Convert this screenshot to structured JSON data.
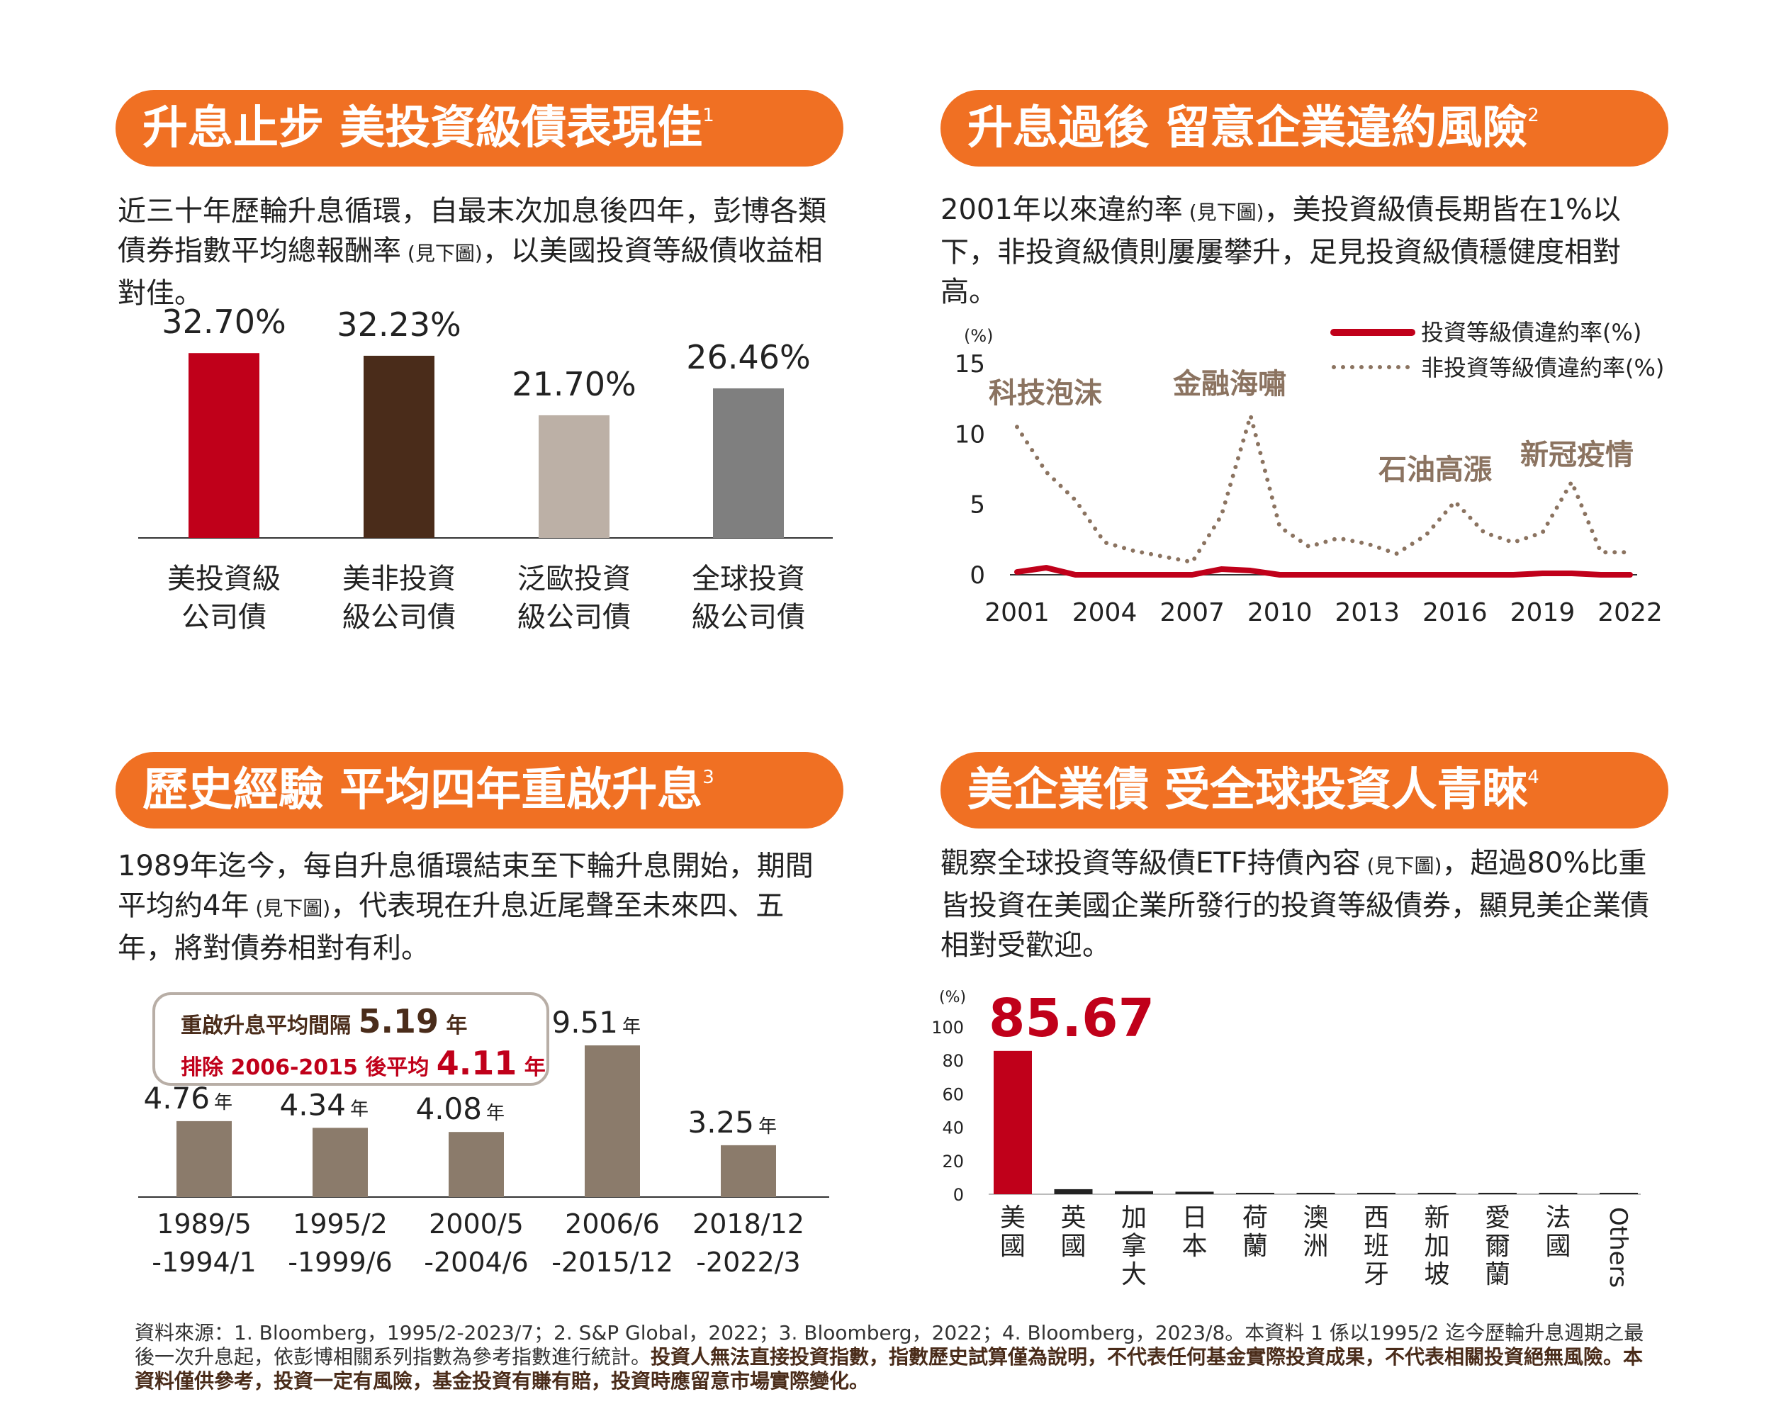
{
  "colors": {
    "orange": "#f07023",
    "red": "#c0001a",
    "dark_brown": "#4a2c1a",
    "light_taupe": "#bcb0a6",
    "gray": "#7f7f7f",
    "taupe": "#8b7b6b",
    "line_brown": "#8b7360"
  },
  "sections": {
    "s1": {
      "title": "升息止步  美投資級債表現佳",
      "note": "1",
      "body_a": "近三十年歷輪升息循環，自最末次加息後四年，彭博各類債券指數平均總報酬率",
      "body_small": " (見下圖)",
      "body_b": "，以美國投資等級債收益相對佳。"
    },
    "s2": {
      "title": "升息過後  留意企業違約風險",
      "note": "2",
      "body_a": "2001年以來違約率",
      "body_small": " (見下圖)",
      "body_b": "，美投資級債長期皆在1%以下，非投資級債則屢屢攀升，足見投資級債穩健度相對高。"
    },
    "s3": {
      "title": "歷史經驗  平均四年重啟升息",
      "note": "3",
      "body_a": "1989年迄今，每自升息循環結束至下輪升息開始，期間平均約4年",
      "body_small": " (見下圖)",
      "body_b": "，代表現在升息近尾聲至未來四、五年，將對債券相對有利。"
    },
    "s4": {
      "title": "美企業債  受全球投資人青睞",
      "note": "4",
      "body_a": "觀察全球投資等級債ETF持債內容",
      "body_small": " (見下圖)",
      "body_b": "，超過80%比重皆投資在美國企業所發行的投資等級債券，顯見美企業債相對受歡迎。"
    }
  },
  "callout": {
    "line1_prefix": "重啟升息平均間隔 ",
    "line1_value": "5.19",
    "line1_suffix": " 年",
    "line2_prefix": "排除 2006-2015 後平均 ",
    "line2_value": "4.11",
    "line2_suffix": " 年"
  },
  "footer": {
    "normal": "資料來源：1. Bloomberg，1995/2-2023/7；2. S&P Global，2022；3. Bloomberg，2022；4. Bloomberg，2023/8。本資料 1 係以1995/2 迄今歷輪升息週期之最後一次升息起，依彭博相關系列指數為參考指數進行統計。",
    "bold": "投資人無法直接投資指數，指數歷史試算僅為說明，不代表任何基金實際投資成果，不代表相關投資絕無風險。本資料僅供參考，投資一定有風險，基金投資有賺有賠，投資時應留意市場實際變化。"
  },
  "chart_data": [
    {
      "type": "bar",
      "categories": [
        [
          "美投資級",
          "公司債"
        ],
        [
          "美非投資",
          "級公司債"
        ],
        [
          "泛歐投資",
          "級公司債"
        ],
        [
          "全球投資",
          "級公司債"
        ]
      ],
      "values": [
        32.7,
        32.23,
        21.7,
        26.46
      ],
      "data_labels": [
        "32.70%",
        "32.23%",
        "21.70%",
        "26.46%"
      ],
      "colors": [
        "#c0001a",
        "#4a2c1a",
        "#bcb0a6",
        "#7f7f7f"
      ],
      "ylim": [
        0,
        40
      ],
      "grid": false
    },
    {
      "type": "line",
      "unit_label": "(%)",
      "x": [
        2001,
        2002,
        2003,
        2004,
        2005,
        2006,
        2007,
        2008,
        2009,
        2010,
        2011,
        2012,
        2013,
        2014,
        2015,
        2016,
        2017,
        2018,
        2019,
        2020,
        2021,
        2022
      ],
      "xticks": [
        "2001",
        "2004",
        "2007",
        "2010",
        "2013",
        "2016",
        "2019",
        "2022"
      ],
      "yticks": [
        "0",
        "5",
        "10",
        "15"
      ],
      "ylim": [
        0,
        15
      ],
      "series": [
        {
          "name": "投資等級債違約率(%)",
          "style": "solid",
          "color": "#c0001a",
          "values": [
            0.2,
            0.5,
            0.0,
            0.0,
            0.0,
            0.0,
            0.0,
            0.4,
            0.3,
            0.0,
            0.0,
            0.0,
            0.0,
            0.0,
            0.0,
            0.0,
            0.0,
            0.0,
            0.1,
            0.1,
            0.0,
            0.0
          ]
        },
        {
          "name": "非投資等級債違約率(%)",
          "style": "dotted",
          "color": "#8b7360",
          "values": [
            10.5,
            7.3,
            5.3,
            2.3,
            1.7,
            1.3,
            0.9,
            4.2,
            11.3,
            3.4,
            2.0,
            2.6,
            2.2,
            1.5,
            2.8,
            5.2,
            3.0,
            2.3,
            3.0,
            6.6,
            1.6,
            1.6
          ]
        }
      ],
      "annotations": [
        "科技泡沫",
        "金融海嘯",
        "石油高漲",
        "新冠疫情"
      ],
      "legend": "top-right",
      "grid": false
    },
    {
      "type": "bar",
      "categories": [
        [
          "1989/5",
          "-1994/1"
        ],
        [
          "1995/2",
          "-1999/6"
        ],
        [
          "2000/5",
          "-2004/6"
        ],
        [
          "2006/6",
          "-2015/12"
        ],
        [
          "2018/12",
          "-2022/3"
        ]
      ],
      "values": [
        4.76,
        4.34,
        4.08,
        9.51,
        3.25
      ],
      "data_labels": [
        "4.76",
        "4.34",
        "4.08",
        "9.51",
        "3.25"
      ],
      "unit": "年",
      "color": "#8b7b6b",
      "ylim": [
        0,
        11
      ],
      "grid": false
    },
    {
      "type": "bar",
      "unit_label": "(%)",
      "categories": [
        [
          "美",
          "國"
        ],
        [
          "英",
          "國"
        ],
        [
          "加",
          "拿",
          "大"
        ],
        [
          "日",
          "本"
        ],
        [
          "荷",
          "蘭"
        ],
        [
          "澳",
          "洲"
        ],
        [
          "西",
          "班",
          "牙"
        ],
        [
          "新",
          "加",
          "坡"
        ],
        [
          "愛",
          "爾",
          "蘭"
        ],
        [
          "法",
          "國"
        ],
        [
          "Others"
        ]
      ],
      "values": [
        85.67,
        3.0,
        1.8,
        1.5,
        0.8,
        0.2,
        0.1,
        0.1,
        0.1,
        0.1,
        0.8
      ],
      "highlight_label": "85.67",
      "yticks": [
        "0",
        "20",
        "40",
        "60",
        "80",
        "100"
      ],
      "ylim": [
        0,
        100
      ],
      "colors": [
        "#c0001a",
        "#222222"
      ],
      "grid": false
    }
  ]
}
